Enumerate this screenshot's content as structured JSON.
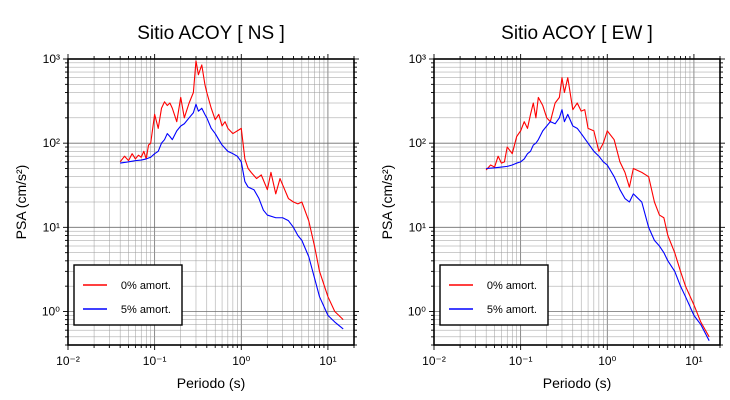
{
  "chart_data": [
    {
      "type": "line",
      "title": "Sitio ACOY [ NS ]",
      "xlabel": "Periodo (s)",
      "ylabel": "PSA (cm/s²)",
      "x_scale": "log",
      "y_scale": "log",
      "xlim": [
        0.01,
        20
      ],
      "ylim": [
        0.4,
        1000
      ],
      "grid": true,
      "legend_position": "bottom-left",
      "x_ticks": [
        "10⁻²",
        "10⁻¹",
        "10⁰",
        "10¹"
      ],
      "y_ticks": [
        "10⁰",
        "10¹",
        "10²",
        "10³"
      ],
      "series": [
        {
          "name": "0% amort.",
          "color": "#ff0000",
          "x": [
            0.04,
            0.045,
            0.05,
            0.055,
            0.06,
            0.065,
            0.07,
            0.075,
            0.08,
            0.085,
            0.09,
            0.1,
            0.11,
            0.12,
            0.13,
            0.14,
            0.15,
            0.16,
            0.18,
            0.2,
            0.22,
            0.25,
            0.28,
            0.3,
            0.32,
            0.35,
            0.38,
            0.4,
            0.45,
            0.5,
            0.55,
            0.6,
            0.65,
            0.7,
            0.8,
            0.9,
            1.0,
            1.1,
            1.2,
            1.3,
            1.5,
            1.7,
            2.0,
            2.2,
            2.5,
            2.8,
            3.0,
            3.5,
            4.0,
            4.5,
            5.0,
            6.0,
            7.0,
            8.0,
            10.0,
            12.0,
            15.0
          ],
          "y": [
            60,
            70,
            62,
            75,
            65,
            72,
            68,
            80,
            65,
            95,
            100,
            220,
            150,
            260,
            310,
            280,
            300,
            260,
            180,
            350,
            200,
            300,
            400,
            950,
            650,
            850,
            500,
            400,
            260,
            190,
            220,
            160,
            180,
            150,
            130,
            140,
            150,
            65,
            50,
            45,
            38,
            42,
            28,
            45,
            25,
            38,
            32,
            22,
            20,
            19,
            20,
            12,
            6,
            3,
            1.5,
            1.0,
            0.8
          ]
        },
        {
          "name": "5% amort.",
          "color": "#0000ff",
          "x": [
            0.04,
            0.05,
            0.06,
            0.07,
            0.08,
            0.09,
            0.1,
            0.11,
            0.12,
            0.13,
            0.14,
            0.15,
            0.16,
            0.18,
            0.2,
            0.22,
            0.25,
            0.28,
            0.3,
            0.32,
            0.35,
            0.38,
            0.4,
            0.45,
            0.5,
            0.55,
            0.6,
            0.7,
            0.8,
            0.9,
            1.0,
            1.1,
            1.2,
            1.4,
            1.6,
            1.8,
            2.0,
            2.5,
            3.0,
            3.5,
            4.0,
            4.5,
            5.0,
            6.0,
            7.0,
            8.0,
            10.0,
            12.0,
            15.0
          ],
          "y": [
            58,
            60,
            62,
            63,
            65,
            68,
            75,
            80,
            100,
            110,
            130,
            120,
            110,
            140,
            160,
            170,
            200,
            230,
            290,
            240,
            260,
            220,
            200,
            150,
            130,
            110,
            95,
            80,
            75,
            70,
            60,
            35,
            30,
            28,
            22,
            16,
            14,
            13,
            13,
            12,
            10,
            8,
            7,
            4.5,
            2.5,
            1.5,
            0.9,
            0.75,
            0.62
          ]
        }
      ]
    },
    {
      "type": "line",
      "title": "Sitio ACOY [ EW ]",
      "xlabel": "Periodo (s)",
      "ylabel": "PSA (cm/s²)",
      "x_scale": "log",
      "y_scale": "log",
      "xlim": [
        0.01,
        20
      ],
      "ylim": [
        0.4,
        1000
      ],
      "grid": true,
      "legend_position": "bottom-left",
      "x_ticks": [
        "10⁻²",
        "10⁻¹",
        "10⁰",
        "10¹"
      ],
      "y_ticks": [
        "10⁰",
        "10¹",
        "10²",
        "10³"
      ],
      "series": [
        {
          "name": "0% amort.",
          "color": "#ff0000",
          "x": [
            0.04,
            0.045,
            0.05,
            0.055,
            0.06,
            0.065,
            0.07,
            0.08,
            0.09,
            0.1,
            0.11,
            0.12,
            0.13,
            0.14,
            0.15,
            0.16,
            0.18,
            0.2,
            0.22,
            0.25,
            0.28,
            0.3,
            0.32,
            0.35,
            0.38,
            0.4,
            0.45,
            0.5,
            0.55,
            0.6,
            0.7,
            0.8,
            0.9,
            1.0,
            1.2,
            1.4,
            1.6,
            1.8,
            2.0,
            2.5,
            3.0,
            3.5,
            4.0,
            4.5,
            5.0,
            6.0,
            7.0,
            8.0,
            10.0,
            12.0,
            15.0
          ],
          "y": [
            48,
            55,
            52,
            70,
            58,
            60,
            90,
            75,
            120,
            140,
            180,
            150,
            220,
            300,
            200,
            350,
            280,
            200,
            180,
            300,
            350,
            600,
            400,
            600,
            350,
            250,
            300,
            240,
            250,
            150,
            140,
            80,
            100,
            140,
            110,
            60,
            45,
            30,
            50,
            45,
            40,
            20,
            14,
            13,
            8,
            5,
            3,
            2,
            1.2,
            0.75,
            0.5
          ]
        },
        {
          "name": "5% amort.",
          "color": "#0000ff",
          "x": [
            0.04,
            0.05,
            0.06,
            0.07,
            0.08,
            0.09,
            0.1,
            0.11,
            0.12,
            0.13,
            0.14,
            0.15,
            0.16,
            0.18,
            0.2,
            0.22,
            0.25,
            0.28,
            0.3,
            0.32,
            0.35,
            0.4,
            0.45,
            0.5,
            0.6,
            0.7,
            0.8,
            0.9,
            1.0,
            1.2,
            1.4,
            1.6,
            1.8,
            2.0,
            2.5,
            3.0,
            3.5,
            4.0,
            4.5,
            5.0,
            6.0,
            7.0,
            8.0,
            10.0,
            12.0,
            15.0
          ],
          "y": [
            50,
            51,
            52,
            53,
            55,
            58,
            60,
            65,
            75,
            80,
            95,
            100,
            110,
            140,
            160,
            180,
            170,
            200,
            250,
            180,
            220,
            160,
            150,
            130,
            100,
            80,
            70,
            60,
            55,
            40,
            28,
            22,
            20,
            25,
            20,
            10,
            7,
            6,
            5,
            4,
            3,
            2,
            1.5,
            0.9,
            0.7,
            0.45
          ]
        }
      ]
    }
  ]
}
